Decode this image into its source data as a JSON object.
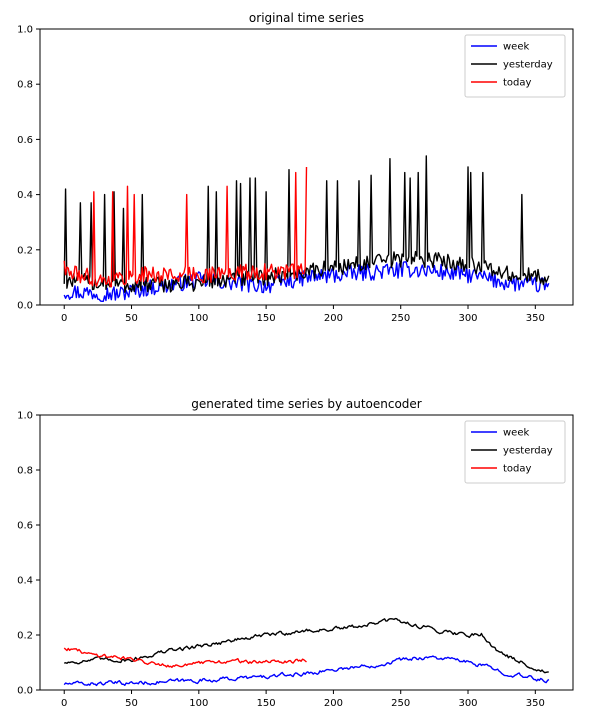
{
  "chart_data": [
    {
      "type": "line",
      "title": "original time series",
      "xlabel": "",
      "ylabel": "",
      "xlim": [
        -18,
        378
      ],
      "ylim": [
        0.0,
        1.0
      ],
      "xticks": [
        0,
        50,
        100,
        150,
        200,
        250,
        300,
        350
      ],
      "yticks": [
        0.0,
        0.2,
        0.4,
        0.6,
        0.8,
        1.0
      ],
      "ytick_labels": [
        "0.0",
        "0.2",
        "0.4",
        "0.6",
        "0.8",
        "1.0"
      ],
      "legend_position": "top-right",
      "grid": false,
      "series": [
        {
          "name": "week",
          "color": "#0000ff",
          "x_range": [
            0,
            360
          ],
          "base_points": [
            [
              0,
              0.05
            ],
            [
              40,
              0.04
            ],
            [
              60,
              0.06
            ],
            [
              100,
              0.09
            ],
            [
              150,
              0.07
            ],
            [
              180,
              0.1
            ],
            [
              230,
              0.12
            ],
            [
              260,
              0.13
            ],
            [
              300,
              0.11
            ],
            [
              330,
              0.08
            ],
            [
              360,
              0.07
            ]
          ],
          "spikes": []
        },
        {
          "name": "yesterday",
          "color": "#000000",
          "x_range": [
            0,
            360
          ],
          "base_points": [
            [
              0,
              0.09
            ],
            [
              50,
              0.07
            ],
            [
              100,
              0.08
            ],
            [
              150,
              0.1
            ],
            [
              180,
              0.12
            ],
            [
              220,
              0.15
            ],
            [
              260,
              0.17
            ],
            [
              300,
              0.15
            ],
            [
              330,
              0.11
            ],
            [
              360,
              0.1
            ]
          ],
          "spikes": [
            [
              1,
              0.42
            ],
            [
              12,
              0.37
            ],
            [
              20,
              0.37
            ],
            [
              30,
              0.4
            ],
            [
              37,
              0.41
            ],
            [
              44,
              0.35
            ],
            [
              58,
              0.4
            ],
            [
              107,
              0.43
            ],
            [
              113,
              0.41
            ],
            [
              128,
              0.45
            ],
            [
              131,
              0.44
            ],
            [
              138,
              0.46
            ],
            [
              142,
              0.46
            ],
            [
              150,
              0.41
            ],
            [
              167,
              0.49
            ],
            [
              195,
              0.45
            ],
            [
              203,
              0.45
            ],
            [
              219,
              0.45
            ],
            [
              228,
              0.47
            ],
            [
              242,
              0.53
            ],
            [
              253,
              0.48
            ],
            [
              257,
              0.46
            ],
            [
              263,
              0.48
            ],
            [
              269,
              0.54
            ],
            [
              300,
              0.5
            ],
            [
              302,
              0.48
            ],
            [
              311,
              0.48
            ],
            [
              340,
              0.4
            ]
          ]
        },
        {
          "name": "today",
          "color": "#ff0000",
          "x_range": [
            0,
            180
          ],
          "base_points": [
            [
              0,
              0.12
            ],
            [
              30,
              0.09
            ],
            [
              60,
              0.11
            ],
            [
              100,
              0.11
            ],
            [
              140,
              0.12
            ],
            [
              180,
              0.12
            ]
          ],
          "spikes": [
            [
              0,
              0.16
            ],
            [
              22,
              0.41
            ],
            [
              36,
              0.41
            ],
            [
              47,
              0.43
            ],
            [
              52,
              0.4
            ],
            [
              91,
              0.4
            ],
            [
              121,
              0.43
            ],
            [
              172,
              0.48
            ],
            [
              180,
              0.5
            ]
          ]
        }
      ]
    },
    {
      "type": "line",
      "title": "generated time series by autoencoder",
      "xlabel": "",
      "ylabel": "",
      "xlim": [
        -18,
        378
      ],
      "ylim": [
        0.0,
        1.0
      ],
      "xticks": [
        0,
        50,
        100,
        150,
        200,
        250,
        300,
        350
      ],
      "yticks": [
        0.0,
        0.2,
        0.4,
        0.6,
        0.8,
        1.0
      ],
      "ytick_labels": [
        "0.0",
        "0.2",
        "0.4",
        "0.6",
        "0.8",
        "1.0"
      ],
      "legend_position": "top-right",
      "grid": false,
      "series": [
        {
          "name": "week",
          "color": "#0000ff",
          "x_range": [
            0,
            360
          ],
          "base_points": [
            [
              0,
              0.022
            ],
            [
              50,
              0.025
            ],
            [
              100,
              0.035
            ],
            [
              150,
              0.048
            ],
            [
              180,
              0.06
            ],
            [
              200,
              0.075
            ],
            [
              230,
              0.09
            ],
            [
              250,
              0.11
            ],
            [
              270,
              0.12
            ],
            [
              290,
              0.11
            ],
            [
              310,
              0.09
            ],
            [
              330,
              0.06
            ],
            [
              350,
              0.04
            ],
            [
              360,
              0.035
            ]
          ],
          "spikes": []
        },
        {
          "name": "yesterday",
          "color": "#000000",
          "x_range": [
            0,
            360
          ],
          "base_points": [
            [
              0,
              0.1
            ],
            [
              25,
              0.11
            ],
            [
              50,
              0.11
            ],
            [
              75,
              0.14
            ],
            [
              100,
              0.16
            ],
            [
              125,
              0.18
            ],
            [
              150,
              0.2
            ],
            [
              180,
              0.215
            ],
            [
              210,
              0.225
            ],
            [
              245,
              0.255
            ],
            [
              275,
              0.22
            ],
            [
              300,
              0.2
            ],
            [
              310,
              0.205
            ],
            [
              320,
              0.15
            ],
            [
              330,
              0.12
            ],
            [
              345,
              0.09
            ],
            [
              360,
              0.06
            ]
          ],
          "spikes": []
        },
        {
          "name": "today",
          "color": "#ff0000",
          "x_range": [
            0,
            180
          ],
          "base_points": [
            [
              0,
              0.155
            ],
            [
              20,
              0.13
            ],
            [
              40,
              0.12
            ],
            [
              60,
              0.105
            ],
            [
              80,
              0.09
            ],
            [
              100,
              0.095
            ],
            [
              120,
              0.105
            ],
            [
              150,
              0.1
            ],
            [
              180,
              0.11
            ]
          ],
          "spikes": []
        }
      ]
    }
  ]
}
